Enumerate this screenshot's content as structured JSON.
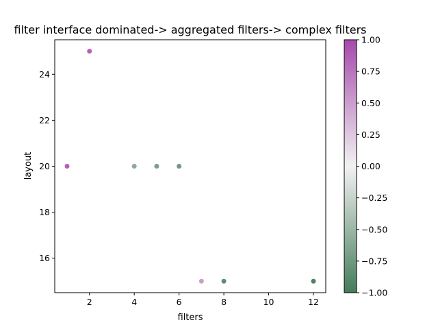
{
  "chart_data": {
    "type": "scatter",
    "title": "filter interface dominated-> aggregated filters-> complex filters",
    "xlabel": "filters",
    "ylabel": "layout",
    "xlim": [
      0.45,
      12.55
    ],
    "ylim": [
      14.5,
      25.5
    ],
    "xticks": [
      2,
      4,
      6,
      8,
      10,
      12
    ],
    "yticks": [
      16,
      18,
      20,
      22,
      24
    ],
    "grid": false,
    "points": [
      {
        "x": 1,
        "y": 20,
        "c": 0.85
      },
      {
        "x": 2,
        "y": 25,
        "c": 0.85
      },
      {
        "x": 4,
        "y": 20,
        "c": -0.6
      },
      {
        "x": 5,
        "y": 20,
        "c": -0.7
      },
      {
        "x": 6,
        "y": 20,
        "c": -0.75
      },
      {
        "x": 7,
        "y": 15,
        "c": 0.5
      },
      {
        "x": 8,
        "y": 15,
        "c": -0.85
      },
      {
        "x": 12,
        "y": 15,
        "c": -0.95
      }
    ],
    "colorbar": {
      "range": [
        -1.0,
        1.0
      ],
      "ticks": [
        "1.00",
        "0.75",
        "0.50",
        "0.25",
        "0.00",
        "−0.25",
        "−0.50",
        "−0.75",
        "−1.00"
      ],
      "tick_values": [
        1.0,
        0.75,
        0.5,
        0.25,
        0.0,
        -0.25,
        -0.5,
        -0.75,
        -1.0
      ],
      "colors": {
        "min": "#447c5a",
        "mid": "#f2f1f2",
        "max": "#a54aab"
      }
    }
  }
}
